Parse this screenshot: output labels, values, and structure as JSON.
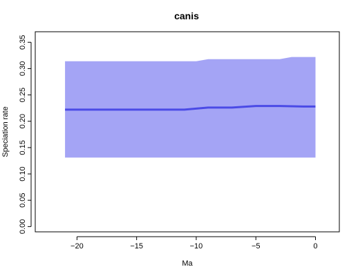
{
  "chart_data": {
    "type": "area",
    "title": "canis",
    "xlabel": "Ma",
    "ylabel": "Speciation rate",
    "xlim": [
      -23.5,
      2
    ],
    "ylim": [
      -0.01,
      0.37
    ],
    "x_ticks": [
      -20,
      -15,
      -10,
      -5,
      0
    ],
    "x_tick_labels": [
      "−20",
      "−15",
      "−10",
      "−5",
      "0"
    ],
    "y_ticks": [
      0.0,
      0.05,
      0.1,
      0.15,
      0.2,
      0.25,
      0.3,
      0.35
    ],
    "y_tick_labels": [
      "0.00",
      "0.05",
      "0.10",
      "0.15",
      "0.20",
      "0.25",
      "0.30",
      "0.35"
    ],
    "grid": false,
    "band": {
      "color": "#a4a4f5",
      "x": [
        -21,
        -19,
        -17,
        -15,
        -13,
        -11,
        -10,
        -9,
        -7,
        -5,
        -3,
        -2,
        -1,
        0
      ],
      "upper": [
        0.314,
        0.314,
        0.314,
        0.314,
        0.314,
        0.314,
        0.314,
        0.318,
        0.318,
        0.318,
        0.318,
        0.322,
        0.322,
        0.322
      ],
      "lower": [
        0.131,
        0.131,
        0.131,
        0.131,
        0.131,
        0.131,
        0.131,
        0.131,
        0.131,
        0.131,
        0.131,
        0.131,
        0.131,
        0.131
      ]
    },
    "series": [
      {
        "color": "#4a4ae6",
        "x": [
          -21,
          -19,
          -17,
          -15,
          -13,
          -11,
          -10,
          -9,
          -7,
          -5,
          -3,
          -1,
          0
        ],
        "values": [
          0.222,
          0.222,
          0.222,
          0.222,
          0.222,
          0.222,
          0.224,
          0.226,
          0.226,
          0.229,
          0.229,
          0.228,
          0.228
        ]
      }
    ]
  }
}
